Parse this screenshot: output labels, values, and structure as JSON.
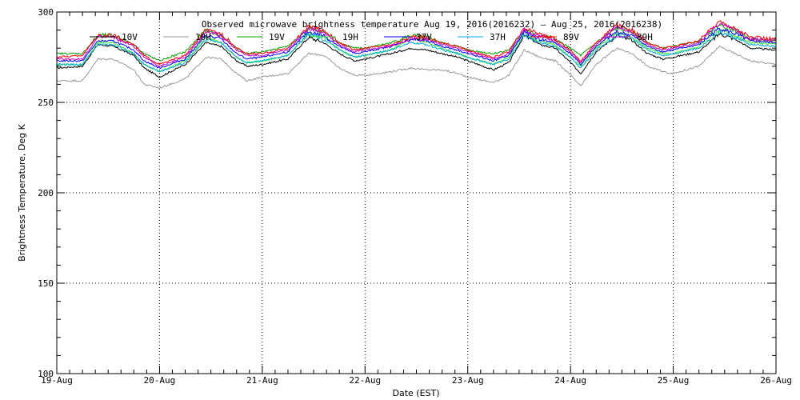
{
  "chart_data": {
    "type": "line",
    "title": "Observed microwave brightness temperature Aug 19, 2016(2016232) – Aug 25, 2016(2016238)",
    "xlabel": "Date (EST)",
    "ylabel": "Brightness Temperature, Deg K",
    "ylim": [
      100,
      300
    ],
    "xlim": [
      0,
      7
    ],
    "yticks": [
      100,
      150,
      200,
      250,
      300
    ],
    "xtick_labels": [
      "19-Aug",
      "20-Aug",
      "21-Aug",
      "22-Aug",
      "23-Aug",
      "24-Aug",
      "25-Aug",
      "26-Aug"
    ],
    "grid": true,
    "legend_position": "top",
    "x_unit": "days since 19-Aug 00:00 EST",
    "x": [
      0,
      0.25,
      0.4,
      0.55,
      0.75,
      0.85,
      1.0,
      1.25,
      1.45,
      1.6,
      1.75,
      1.85,
      2.0,
      2.25,
      2.45,
      2.6,
      2.75,
      2.9,
      3.0,
      3.25,
      3.45,
      3.6,
      3.75,
      3.9,
      4.0,
      4.25,
      4.4,
      4.55,
      4.7,
      4.85,
      5.0,
      5.1,
      5.25,
      5.45,
      5.6,
      5.75,
      5.9,
      6.0,
      6.25,
      6.45,
      6.6,
      6.75,
      7.0
    ],
    "series": [
      {
        "name": "10V",
        "color": "#000000",
        "values": [
          269,
          270,
          282,
          281,
          276,
          269,
          264,
          271,
          283,
          281,
          273,
          270,
          271,
          274,
          286,
          283,
          277,
          273,
          274,
          277,
          280,
          279,
          277,
          275,
          273,
          268,
          272,
          287,
          282,
          280,
          272,
          266,
          278,
          287,
          284,
          277,
          274,
          275,
          278,
          288,
          285,
          280,
          279
        ]
      },
      {
        "name": "10H",
        "color": "#999999",
        "values": [
          262,
          262,
          274,
          274,
          268,
          260,
          258,
          263,
          275,
          274,
          266,
          262,
          264,
          266,
          277,
          276,
          269,
          265,
          265,
          267,
          269,
          268,
          268,
          266,
          264,
          261,
          265,
          279,
          275,
          273,
          265,
          259,
          271,
          280,
          277,
          270,
          267,
          266,
          270,
          281,
          277,
          273,
          271
        ]
      },
      {
        "name": "19V",
        "color": "#00a000",
        "values": [
          277,
          277,
          287,
          287,
          282,
          277,
          273,
          278,
          290,
          287,
          280,
          277,
          278,
          281,
          291,
          289,
          283,
          280,
          280,
          283,
          287,
          286,
          283,
          281,
          279,
          277,
          279,
          290,
          287,
          285,
          280,
          276,
          283,
          291,
          289,
          283,
          280,
          281,
          284,
          293,
          290,
          285,
          284
        ]
      },
      {
        "name": "19H",
        "color": "#33ee33",
        "values": [
          271,
          271,
          283,
          283,
          277,
          271,
          267,
          273,
          286,
          283,
          275,
          272,
          273,
          276,
          288,
          286,
          279,
          275,
          276,
          279,
          286,
          283,
          280,
          277,
          275,
          271,
          275,
          289,
          284,
          282,
          275,
          270,
          280,
          289,
          286,
          280,
          277,
          277,
          281,
          290,
          287,
          283,
          282
        ]
      },
      {
        "name": "37V",
        "color": "#0000ff",
        "values": [
          273,
          273,
          284,
          284,
          279,
          273,
          269,
          274,
          287,
          285,
          277,
          274,
          275,
          278,
          289,
          287,
          281,
          277,
          278,
          281,
          285,
          284,
          281,
          279,
          277,
          273,
          276,
          289,
          285,
          283,
          277,
          271,
          281,
          289,
          287,
          281,
          278,
          279,
          282,
          291,
          288,
          284,
          283
        ]
      },
      {
        "name": "37H",
        "color": "#00aadd",
        "values": [
          271,
          271,
          282,
          282,
          277,
          271,
          267,
          272,
          285,
          283,
          275,
          272,
          273,
          276,
          288,
          285,
          279,
          275,
          276,
          279,
          283,
          282,
          279,
          277,
          275,
          271,
          274,
          287,
          283,
          281,
          275,
          269,
          279,
          287,
          285,
          279,
          276,
          277,
          280,
          289,
          286,
          282,
          281
        ]
      },
      {
        "name": "89V",
        "color": "#ff0000",
        "values": [
          275,
          276,
          287,
          287,
          282,
          276,
          271,
          276,
          290,
          288,
          280,
          277,
          277,
          280,
          292,
          290,
          283,
          279,
          280,
          282,
          286,
          286,
          283,
          281,
          279,
          275,
          278,
          291,
          288,
          285,
          279,
          273,
          283,
          293,
          290,
          283,
          280,
          281,
          284,
          295,
          291,
          286,
          285
        ]
      },
      {
        "name": "89H",
        "color": "#cc00cc",
        "values": [
          274,
          274,
          286,
          286,
          281,
          275,
          270,
          275,
          289,
          287,
          279,
          276,
          276,
          279,
          291,
          289,
          282,
          278,
          279,
          281,
          285,
          285,
          282,
          280,
          278,
          274,
          277,
          290,
          287,
          284,
          278,
          272,
          282,
          292,
          289,
          282,
          279,
          280,
          283,
          294,
          290,
          285,
          284
        ]
      }
    ]
  }
}
